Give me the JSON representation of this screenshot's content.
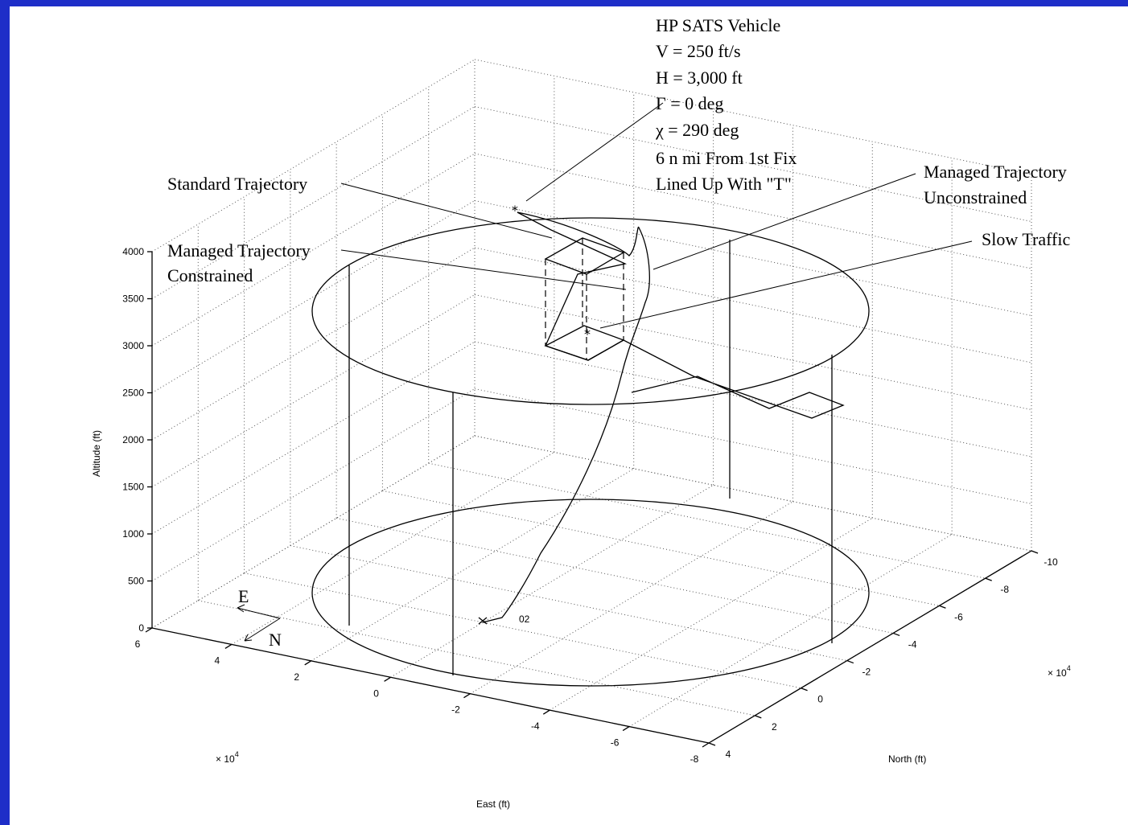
{
  "chart_data": {
    "type": "line",
    "title": "",
    "axes": {
      "z": {
        "label": "Altitude (ft)",
        "ticks": [
          "0",
          "500",
          "1000",
          "1500",
          "2000",
          "2500",
          "3000",
          "3500",
          "4000"
        ],
        "range": [
          0,
          4000
        ]
      },
      "east": {
        "label": "East (ft)",
        "ticks": [
          "6",
          "4",
          "2",
          "0",
          "-2",
          "-4",
          "-6",
          "-8"
        ],
        "exponent_base": "× 10",
        "exponent_power": "4"
      },
      "north": {
        "label": "North (ft)",
        "ticks": [
          "4",
          "2",
          "0",
          "-2",
          "-4",
          "-6",
          "-8",
          "-10"
        ],
        "exponent_base": "× 10",
        "exponent_power": "4"
      }
    },
    "grid": true,
    "vehicle_info": [
      "HP SATS Vehicle",
      "V = 250 ft/s",
      "H = 3,000 ft",
      "Γ = 0 deg",
      "χ = 290 deg",
      "6 n mi From 1st Fix",
      "Lined Up With \"T\""
    ],
    "annotations": {
      "standard": "Standard Trajectory",
      "managed_constrained_1": "Managed Trajectory",
      "managed_constrained_2": "Constrained",
      "managed_unconstrained_1": "Managed Trajectory",
      "managed_unconstrained_2": "Unconstrained",
      "slow_traffic": "Slow Traffic",
      "waypoint": "02"
    },
    "compass": {
      "east": "E",
      "north": "N"
    }
  }
}
